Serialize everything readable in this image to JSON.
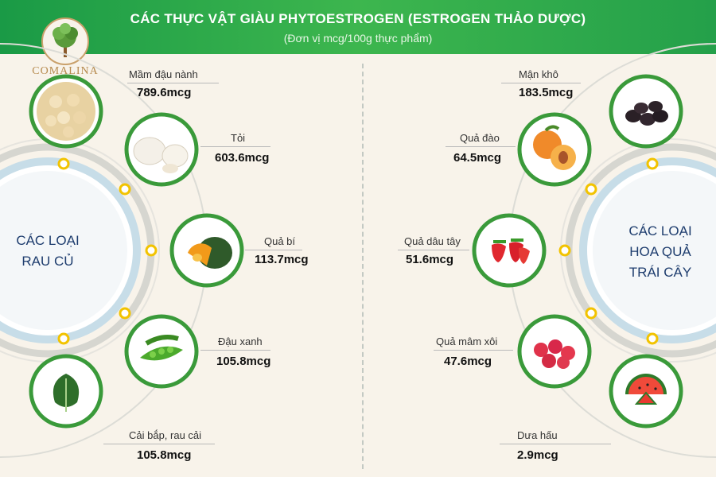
{
  "header": {
    "title": "CÁC  THỰC VẬT GIÀU PHYTOESTROGEN (ESTROGEN THẢO DƯỢC)",
    "subtitle": "(Đơn vị mcg/100g thực phẩm)"
  },
  "brand": {
    "name": "COMALINA"
  },
  "colors": {
    "header_green": "#2aa84a",
    "ring_green": "#3a9a3a",
    "ring_gray": "#d6d6d0",
    "node_yellow": "#f2c300",
    "center_text": "#1e3d6e"
  },
  "left": {
    "center_label": [
      "CÁC LOẠI",
      "RAU CỦ"
    ],
    "items": [
      {
        "label": "Mầm đậu nành",
        "value": "789.6mcg",
        "icon": "soybean-icon"
      },
      {
        "label": "Tỏi",
        "value": "603.6mcg",
        "icon": "garlic-icon"
      },
      {
        "label": "Quả bí",
        "value": "113.7mcg",
        "icon": "pumpkin-icon"
      },
      {
        "label": "Đậu xanh",
        "value": "105.8mcg",
        "icon": "green-pea-icon"
      },
      {
        "label": "Cải bắp, rau cải",
        "value": "105.8mcg",
        "icon": "cabbage-icon"
      }
    ]
  },
  "right": {
    "center_label": [
      "CÁC LOẠI",
      "HOA QUẢ",
      "TRÁI CÂY"
    ],
    "items": [
      {
        "label": "Mận khô",
        "value": "183.5mcg",
        "icon": "prune-icon"
      },
      {
        "label": "Quả đào",
        "value": "64.5mcg",
        "icon": "peach-icon"
      },
      {
        "label": "Quả dâu tây",
        "value": "51.6mcg",
        "icon": "strawberry-icon"
      },
      {
        "label": "Quả mâm xôi",
        "value": "47.6mcg",
        "icon": "raspberry-icon"
      },
      {
        "label": "Dưa hấu",
        "value": "2.9mcg",
        "icon": "watermelon-icon"
      }
    ]
  }
}
